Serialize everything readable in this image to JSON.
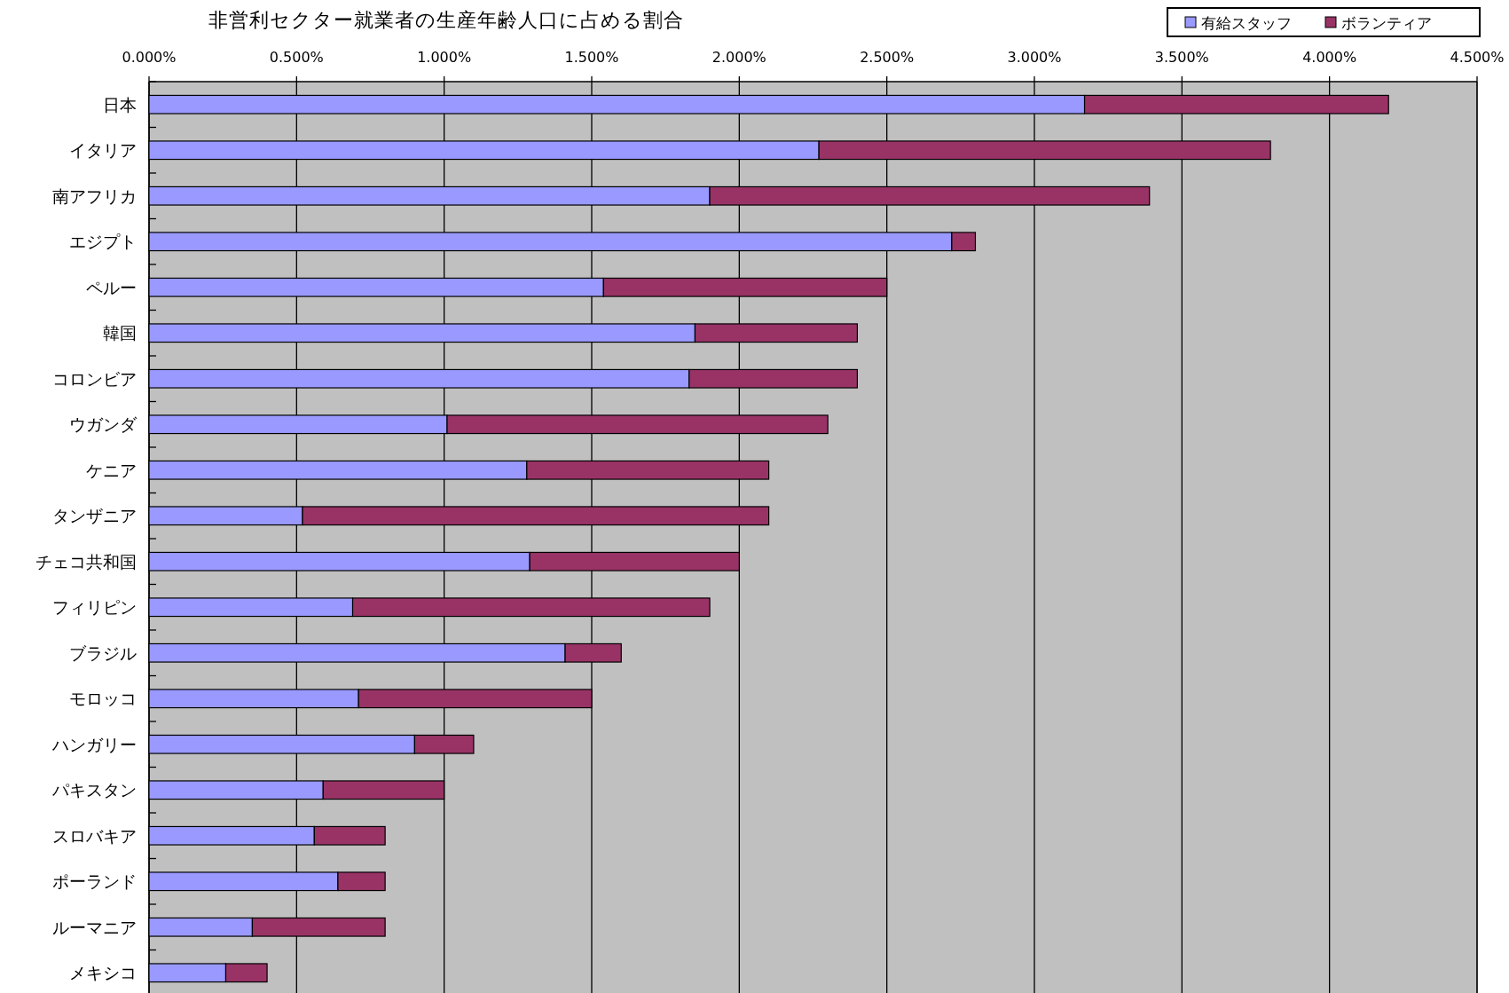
{
  "chart_data": {
    "type": "bar",
    "title": "非営利セクター就業者の生産年齢人口に占める割合",
    "orientation": "horizontal",
    "stacked": true,
    "categories": [
      "日本",
      "イタリア",
      "南アフリカ",
      "エジプト",
      "ペルー",
      "韓国",
      "コロンビア",
      "ウガンダ",
      "ケニア",
      "タンザニア",
      "チェコ共和国",
      "フィリピン",
      "ブラジル",
      "モロッコ",
      "ハンガリー",
      "パキスタン",
      "スロバキア",
      "ポーランド",
      "ルーマニア",
      "メキシコ"
    ],
    "series": [
      {
        "name": "有給スタッフ",
        "color": "#9999ff",
        "values": [
          3.17,
          2.27,
          1.9,
          2.72,
          1.54,
          1.85,
          1.83,
          1.01,
          1.28,
          0.52,
          1.29,
          0.69,
          1.41,
          0.71,
          0.9,
          0.59,
          0.56,
          0.64,
          0.35,
          0.26
        ]
      },
      {
        "name": "ボランティア",
        "color": "#993366",
        "values": [
          1.03,
          1.53,
          1.49,
          0.08,
          0.96,
          0.55,
          0.57,
          1.29,
          0.82,
          1.58,
          0.71,
          1.21,
          0.19,
          0.79,
          0.2,
          0.41,
          0.24,
          0.16,
          0.45,
          0.14
        ]
      }
    ],
    "xlim": [
      0,
      4.5
    ],
    "xticks": [
      {
        "value": 0,
        "label": "0.000%"
      },
      {
        "value": 0.5,
        "label": "0.500%"
      },
      {
        "value": 1,
        "label": "1.000%"
      },
      {
        "value": 1.5,
        "label": "1.500%"
      },
      {
        "value": 2,
        "label": "2.000%"
      },
      {
        "value": 2.5,
        "label": "2.500%"
      },
      {
        "value": 3,
        "label": "3.000%"
      },
      {
        "value": 3.5,
        "label": "3.500%"
      },
      {
        "value": 4,
        "label": "4.000%"
      },
      {
        "value": 4.5,
        "label": "4.500%"
      }
    ],
    "grid": "x",
    "legend": "top right"
  }
}
